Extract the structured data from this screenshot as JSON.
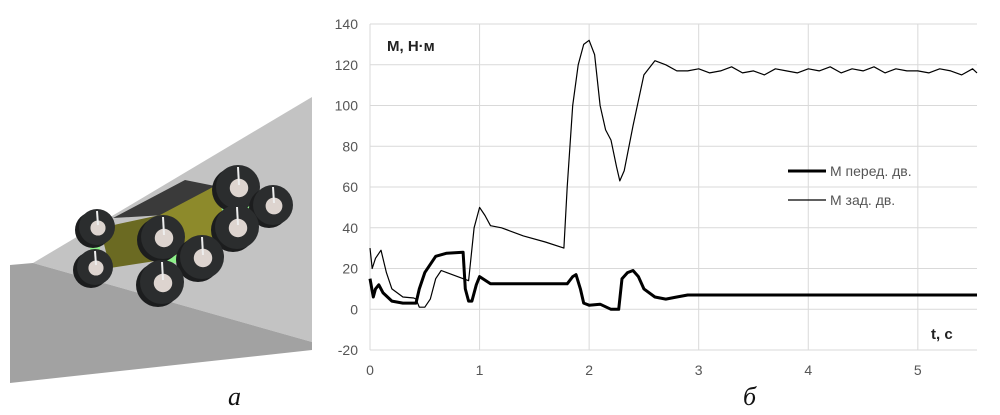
{
  "panels": {
    "left_label": "а",
    "right_label": "б"
  },
  "scene": {
    "description_colors": {
      "slope_light": "#c3c3c3",
      "slope_dark": "#a2a2a2",
      "wheel": "#2b2d2e",
      "hub": "#ddd4cf",
      "body": "#8c8b2a",
      "joint": "#8ef08a"
    }
  },
  "chart_data": {
    "type": "line",
    "ylabel": "М, Н·м",
    "xlabel": "t, c",
    "xlim": [
      0,
      5.54
    ],
    "ylim": [
      -20,
      140
    ],
    "xticks": [
      0,
      1,
      2,
      3,
      4,
      5
    ],
    "yticks": [
      -20,
      0,
      20,
      40,
      60,
      80,
      100,
      120,
      140
    ],
    "grid": true,
    "legend_position": "right-middle",
    "series": [
      {
        "name": "М перед. дв.",
        "style": "thick",
        "color": "#000000",
        "points": [
          [
            0,
            15
          ],
          [
            0.03,
            6
          ],
          [
            0.05,
            10
          ],
          [
            0.08,
            12
          ],
          [
            0.12,
            8
          ],
          [
            0.2,
            4
          ],
          [
            0.3,
            3
          ],
          [
            0.42,
            3
          ],
          [
            0.45,
            10
          ],
          [
            0.5,
            18
          ],
          [
            0.6,
            26
          ],
          [
            0.7,
            27.5
          ],
          [
            0.85,
            28
          ],
          [
            0.87,
            10
          ],
          [
            0.9,
            4
          ],
          [
            0.93,
            4
          ],
          [
            0.97,
            12
          ],
          [
            1.0,
            16
          ],
          [
            1.1,
            12.5
          ],
          [
            1.8,
            12.5
          ],
          [
            1.85,
            16
          ],
          [
            1.88,
            17
          ],
          [
            1.92,
            10
          ],
          [
            1.95,
            3
          ],
          [
            2.0,
            2
          ],
          [
            2.1,
            2.5
          ],
          [
            2.2,
            0
          ],
          [
            2.27,
            0
          ],
          [
            2.3,
            15
          ],
          [
            2.35,
            18
          ],
          [
            2.4,
            19
          ],
          [
            2.45,
            16
          ],
          [
            2.5,
            10
          ],
          [
            2.6,
            6
          ],
          [
            2.7,
            5
          ],
          [
            2.8,
            6
          ],
          [
            2.9,
            7
          ],
          [
            5.54,
            7
          ]
        ]
      },
      {
        "name": "М зад. дв.",
        "style": "thin",
        "color": "#000000",
        "points": [
          [
            0,
            30
          ],
          [
            0.02,
            20
          ],
          [
            0.05,
            25
          ],
          [
            0.1,
            29
          ],
          [
            0.15,
            18
          ],
          [
            0.2,
            10
          ],
          [
            0.3,
            6
          ],
          [
            0.4,
            5.5
          ],
          [
            0.42,
            5
          ],
          [
            0.45,
            1
          ],
          [
            0.5,
            1
          ],
          [
            0.55,
            5
          ],
          [
            0.6,
            15
          ],
          [
            0.65,
            19
          ],
          [
            0.7,
            18
          ],
          [
            0.9,
            14
          ],
          [
            0.95,
            40
          ],
          [
            1.0,
            50
          ],
          [
            1.05,
            46
          ],
          [
            1.1,
            41
          ],
          [
            1.2,
            40
          ],
          [
            1.4,
            36
          ],
          [
            1.6,
            33
          ],
          [
            1.77,
            30
          ],
          [
            1.8,
            60
          ],
          [
            1.85,
            100
          ],
          [
            1.9,
            120
          ],
          [
            1.95,
            130
          ],
          [
            2.0,
            132
          ],
          [
            2.05,
            125
          ],
          [
            2.1,
            100
          ],
          [
            2.15,
            88
          ],
          [
            2.2,
            83
          ],
          [
            2.25,
            70
          ],
          [
            2.28,
            63
          ],
          [
            2.32,
            68
          ],
          [
            2.4,
            90
          ],
          [
            2.5,
            115
          ],
          [
            2.6,
            122
          ],
          [
            2.7,
            120
          ],
          [
            2.8,
            117
          ],
          [
            2.9,
            117
          ],
          [
            3.0,
            118
          ],
          [
            3.1,
            116
          ],
          [
            3.2,
            117
          ],
          [
            3.3,
            119
          ],
          [
            3.4,
            116
          ],
          [
            3.5,
            117
          ],
          [
            3.6,
            115
          ],
          [
            3.7,
            118
          ],
          [
            3.8,
            117
          ],
          [
            3.9,
            116
          ],
          [
            4.0,
            118
          ],
          [
            4.1,
            117
          ],
          [
            4.2,
            119
          ],
          [
            4.3,
            116
          ],
          [
            4.4,
            118
          ],
          [
            4.5,
            117
          ],
          [
            4.6,
            119
          ],
          [
            4.7,
            116
          ],
          [
            4.8,
            118
          ],
          [
            4.9,
            117
          ],
          [
            5.0,
            117
          ],
          [
            5.1,
            116
          ],
          [
            5.2,
            118
          ],
          [
            5.3,
            117
          ],
          [
            5.4,
            115
          ],
          [
            5.5,
            118
          ],
          [
            5.54,
            116
          ]
        ]
      }
    ]
  }
}
